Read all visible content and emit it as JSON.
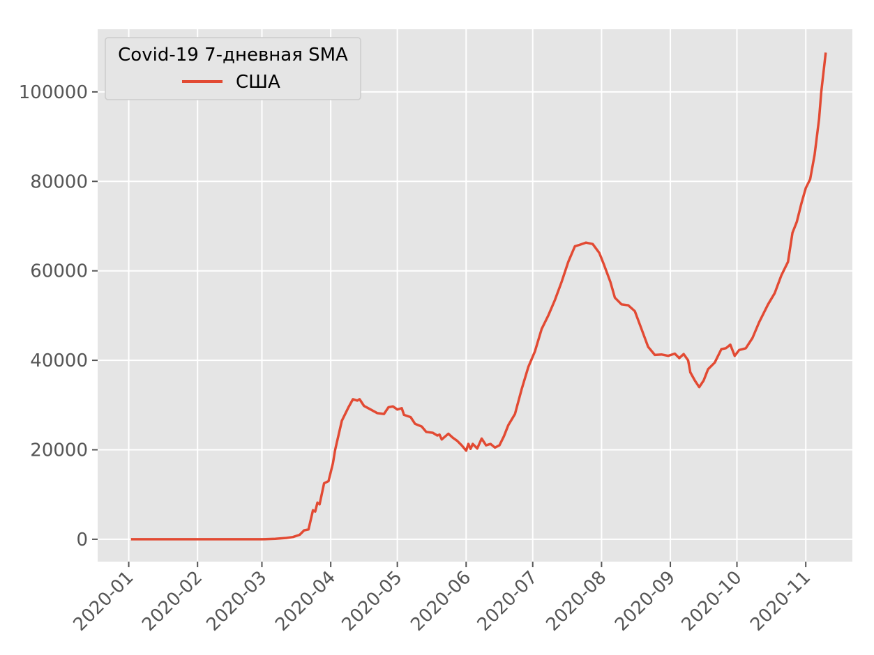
{
  "chart_data": {
    "type": "line",
    "xlabel": "",
    "ylabel": "",
    "x_tick_labels": [
      "2020-01",
      "2020-02",
      "2020-03",
      "2020-04",
      "2020-05",
      "2020-06",
      "2020-07",
      "2020-08",
      "2020-09",
      "2020-10",
      "2020-11"
    ],
    "y_tick_labels": [
      "0",
      "20000",
      "40000",
      "60000",
      "80000",
      "100000"
    ],
    "xlim": [
      "2019-12-18",
      "2020-11-22"
    ],
    "ylim": [
      -5000,
      114000
    ],
    "grid": true,
    "legend": {
      "title": "Covid-19 7-дневная SMA",
      "placement": "top-left"
    },
    "series": [
      {
        "name": "США",
        "color": "#E24A33",
        "points": [
          [
            "2020-01-02",
            0
          ],
          [
            "2020-01-15",
            0
          ],
          [
            "2020-02-01",
            0
          ],
          [
            "2020-02-15",
            0
          ],
          [
            "2020-03-01",
            0
          ],
          [
            "2020-03-07",
            100
          ],
          [
            "2020-03-12",
            300
          ],
          [
            "2020-03-15",
            500
          ],
          [
            "2020-03-18",
            1000
          ],
          [
            "2020-03-20",
            2000
          ],
          [
            "2020-03-22",
            2200
          ],
          [
            "2020-03-24",
            6500
          ],
          [
            "2020-03-25",
            6200
          ],
          [
            "2020-03-26",
            8200
          ],
          [
            "2020-03-27",
            7800
          ],
          [
            "2020-03-29",
            12500
          ],
          [
            "2020-03-31",
            13000
          ],
          [
            "2020-04-02",
            17000
          ],
          [
            "2020-04-03",
            20000
          ],
          [
            "2020-04-06",
            26500
          ],
          [
            "2020-04-09",
            29500
          ],
          [
            "2020-04-11",
            31300
          ],
          [
            "2020-04-13",
            31000
          ],
          [
            "2020-04-14",
            31300
          ],
          [
            "2020-04-16",
            29800
          ],
          [
            "2020-04-19",
            29000
          ],
          [
            "2020-04-22",
            28200
          ],
          [
            "2020-04-25",
            28000
          ],
          [
            "2020-04-27",
            29500
          ],
          [
            "2020-04-29",
            29700
          ],
          [
            "2020-05-01",
            29000
          ],
          [
            "2020-05-03",
            29300
          ],
          [
            "2020-05-04",
            27800
          ],
          [
            "2020-05-07",
            27300
          ],
          [
            "2020-05-09",
            25800
          ],
          [
            "2020-05-12",
            25200
          ],
          [
            "2020-05-14",
            24000
          ],
          [
            "2020-05-17",
            23800
          ],
          [
            "2020-05-19",
            23200
          ],
          [
            "2020-05-20",
            23400
          ],
          [
            "2020-05-21",
            22300
          ],
          [
            "2020-05-24",
            23600
          ],
          [
            "2020-05-26",
            22700
          ],
          [
            "2020-05-28",
            22000
          ],
          [
            "2020-05-30",
            21000
          ],
          [
            "2020-06-01",
            19800
          ],
          [
            "2020-06-02",
            21300
          ],
          [
            "2020-06-03",
            20200
          ],
          [
            "2020-06-04",
            21300
          ],
          [
            "2020-06-06",
            20300
          ],
          [
            "2020-06-08",
            22500
          ],
          [
            "2020-06-10",
            21000
          ],
          [
            "2020-06-12",
            21300
          ],
          [
            "2020-06-14",
            20500
          ],
          [
            "2020-06-16",
            21000
          ],
          [
            "2020-06-18",
            23000
          ],
          [
            "2020-06-20",
            25500
          ],
          [
            "2020-06-23",
            28000
          ],
          [
            "2020-06-26",
            33500
          ],
          [
            "2020-06-29",
            38500
          ],
          [
            "2020-07-02",
            42000
          ],
          [
            "2020-07-05",
            47000
          ],
          [
            "2020-07-08",
            50000
          ],
          [
            "2020-07-11",
            53500
          ],
          [
            "2020-07-14",
            57500
          ],
          [
            "2020-07-17",
            62000
          ],
          [
            "2020-07-20",
            65500
          ],
          [
            "2020-07-22",
            65800
          ],
          [
            "2020-07-25",
            66300
          ],
          [
            "2020-07-28",
            66000
          ],
          [
            "2020-07-31",
            64000
          ],
          [
            "2020-08-02",
            61500
          ],
          [
            "2020-08-05",
            57500
          ],
          [
            "2020-08-07",
            54000
          ],
          [
            "2020-08-10",
            52500
          ],
          [
            "2020-08-13",
            52300
          ],
          [
            "2020-08-16",
            51000
          ],
          [
            "2020-08-19",
            47000
          ],
          [
            "2020-08-22",
            43000
          ],
          [
            "2020-08-25",
            41200
          ],
          [
            "2020-08-28",
            41300
          ],
          [
            "2020-08-31",
            41000
          ],
          [
            "2020-09-03",
            41500
          ],
          [
            "2020-09-05",
            40500
          ],
          [
            "2020-09-07",
            41400
          ],
          [
            "2020-09-09",
            40000
          ],
          [
            "2020-09-10",
            37300
          ],
          [
            "2020-09-12",
            35500
          ],
          [
            "2020-09-14",
            34000
          ],
          [
            "2020-09-16",
            35500
          ],
          [
            "2020-09-18",
            38000
          ],
          [
            "2020-09-21",
            39500
          ],
          [
            "2020-09-24",
            42500
          ],
          [
            "2020-09-26",
            42700
          ],
          [
            "2020-09-28",
            43500
          ],
          [
            "2020-09-30",
            41000
          ],
          [
            "2020-10-02",
            42300
          ],
          [
            "2020-10-05",
            42700
          ],
          [
            "2020-10-08",
            45000
          ],
          [
            "2020-10-11",
            48500
          ],
          [
            "2020-10-15",
            52500
          ],
          [
            "2020-10-18",
            55000
          ],
          [
            "2020-10-21",
            59000
          ],
          [
            "2020-10-24",
            62000
          ],
          [
            "2020-10-26",
            68500
          ],
          [
            "2020-10-28",
            71000
          ],
          [
            "2020-10-30",
            75000
          ],
          [
            "2020-11-01",
            78500
          ],
          [
            "2020-11-03",
            80500
          ],
          [
            "2020-11-05",
            86000
          ],
          [
            "2020-11-07",
            94000
          ],
          [
            "2020-11-08",
            100000
          ],
          [
            "2020-11-10",
            108800
          ]
        ]
      }
    ]
  }
}
